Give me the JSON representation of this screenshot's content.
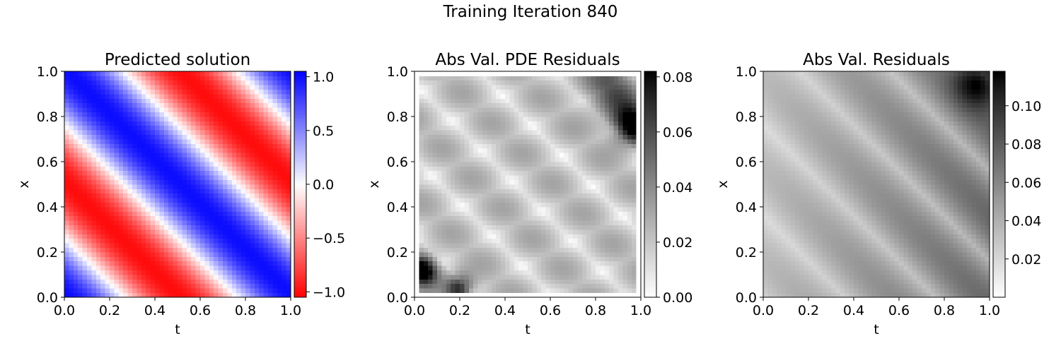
{
  "figure": {
    "suptitle": "Training Iteration 840"
  },
  "chart_data": [
    {
      "type": "heatmap",
      "title": "Predicted solution",
      "xlabel": "t",
      "ylabel": "x",
      "xlim": [
        0,
        1
      ],
      "ylim": [
        0,
        1
      ],
      "xticks": [
        "0.0",
        "0.2",
        "0.4",
        "0.6",
        "0.8",
        "1.0"
      ],
      "yticks": [
        "0.0",
        "0.2",
        "0.4",
        "0.6",
        "0.8",
        "1.0"
      ],
      "grid": "50x50",
      "colormap": "bwr_r",
      "colors": {
        "low": "#ff0000",
        "mid": "#ffffff",
        "high": "#0000ff"
      },
      "value_range": [
        -1.05,
        1.05
      ],
      "colorbar": {
        "ticks": [
          {
            "value": 1.0,
            "label": "1.0"
          },
          {
            "value": 0.5,
            "label": "0.5"
          },
          {
            "value": 0.0,
            "label": "0.0"
          },
          {
            "value": -0.5,
            "label": "−0.5"
          },
          {
            "value": -1.0,
            "label": "−1.0"
          }
        ]
      },
      "field": "sin(2π(x + t) + 0.47π)"
    },
    {
      "type": "heatmap",
      "title": "Abs Val. PDE Residuals",
      "xlabel": "t",
      "ylabel": "x",
      "xlim": [
        0,
        1
      ],
      "ylim": [
        0,
        1
      ],
      "xticks": [
        "0.0",
        "0.2",
        "0.4",
        "0.6",
        "0.8",
        "1.0"
      ],
      "yticks": [
        "0.0",
        "0.2",
        "0.4",
        "0.6",
        "0.8",
        "1.0"
      ],
      "grid": "50x50",
      "colormap": "Greys",
      "colors": {
        "low": "#ffffff",
        "high": "#000000"
      },
      "value_range": [
        0,
        0.082
      ],
      "colorbar": {
        "ticks": [
          {
            "value": 0.08,
            "label": "0.08"
          },
          {
            "value": 0.06,
            "label": "0.06"
          },
          {
            "value": 0.04,
            "label": "0.04"
          },
          {
            "value": 0.02,
            "label": "0.02"
          },
          {
            "value": 0.0,
            "label": "0.00"
          }
        ]
      },
      "boundary": "zero-valued border one cell wide",
      "hotspots": [
        {
          "t": 0.04,
          "x": 0.12,
          "value": 0.08
        },
        {
          "t": 0.96,
          "x": 0.76,
          "value": 0.08
        },
        {
          "t": 0.2,
          "x": 0.04,
          "value": 0.07
        }
      ]
    },
    {
      "type": "heatmap",
      "title": "Abs Val. Residuals",
      "xlabel": "t",
      "ylabel": "x",
      "xlim": [
        0,
        1
      ],
      "ylim": [
        0,
        1
      ],
      "xticks": [
        "0.0",
        "0.2",
        "0.4",
        "0.6",
        "0.8",
        "1.0"
      ],
      "yticks": [
        "0.0",
        "0.2",
        "0.4",
        "0.6",
        "0.8",
        "1.0"
      ],
      "grid": "50x50",
      "colormap": "Greys",
      "colors": {
        "low": "#ffffff",
        "high": "#000000"
      },
      "value_range": [
        0.0,
        0.118
      ],
      "colorbar": {
        "ticks": [
          {
            "value": 0.1,
            "label": "0.10"
          },
          {
            "value": 0.08,
            "label": "0.08"
          },
          {
            "value": 0.06,
            "label": "0.06"
          },
          {
            "value": 0.04,
            "label": "0.04"
          },
          {
            "value": 0.02,
            "label": "0.02"
          }
        ]
      },
      "hotspots": [
        {
          "t": 0.96,
          "x": 0.96,
          "value": 0.115
        }
      ]
    }
  ]
}
